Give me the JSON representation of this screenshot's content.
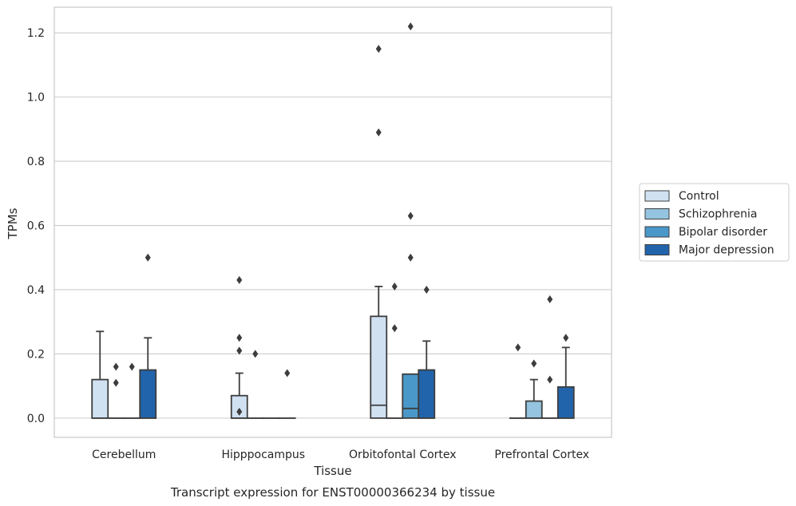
{
  "chart_data": {
    "type": "box",
    "xlabel": "Tissue",
    "ylabel": "TPMs",
    "caption": "Transcript expression for ENST00000366234 by tissue",
    "ylim": [
      -0.06,
      1.28
    ],
    "yticks": [
      0.0,
      0.2,
      0.4,
      0.6,
      0.8,
      1.0,
      1.2
    ],
    "ytick_labels": [
      "0.0",
      "0.2",
      "0.4",
      "0.6",
      "0.8",
      "1.0",
      "1.2"
    ],
    "grid": "horizontal",
    "legend_position": "right",
    "categories": [
      "Cerebellum",
      "Hipppocampus",
      "Orbitofontal Cortex",
      "Prefrontal Cortex"
    ],
    "series": [
      {
        "name": "Control",
        "color": "#d0e1f2",
        "boxes": [
          {
            "q1": 0.0,
            "median": 0.0,
            "q3": 0.12,
            "whisker_low": 0.0,
            "whisker_high": 0.27,
            "outliers": []
          },
          {
            "q1": 0.0,
            "median": 0.0,
            "q3": 0.07,
            "whisker_low": 0.0,
            "whisker_high": 0.14,
            "outliers": [
              0.43,
              0.25,
              0.21,
              0.02
            ]
          },
          {
            "q1": 0.0,
            "median": 0.04,
            "q3": 0.317,
            "whisker_low": 0.0,
            "whisker_high": 0.41,
            "outliers": [
              1.15,
              0.89
            ]
          },
          {
            "q1": 0.0,
            "median": 0.0,
            "q3": 0.0,
            "whisker_low": 0.0,
            "whisker_high": 0.0,
            "outliers": [
              0.22
            ]
          }
        ]
      },
      {
        "name": "Schizophrenia",
        "color": "#94c4df",
        "boxes": [
          {
            "q1": 0.0,
            "median": 0.0,
            "q3": 0.0,
            "whisker_low": 0.0,
            "whisker_high": 0.0,
            "outliers": [
              0.16,
              0.11
            ]
          },
          {
            "q1": 0.0,
            "median": 0.0,
            "q3": 0.0,
            "whisker_low": 0.0,
            "whisker_high": 0.0,
            "outliers": [
              0.2
            ]
          },
          {
            "q1": 0.0,
            "median": 0.0,
            "q3": 0.0,
            "whisker_low": 0.0,
            "whisker_high": 0.0,
            "outliers": [
              0.41,
              0.28
            ]
          },
          {
            "q1": 0.0,
            "median": 0.0,
            "q3": 0.053,
            "whisker_low": 0.0,
            "whisker_high": 0.12,
            "outliers": [
              0.17
            ]
          }
        ]
      },
      {
        "name": "Bipolar disorder",
        "color": "#4a98c9",
        "boxes": [
          {
            "q1": 0.0,
            "median": 0.0,
            "q3": 0.0,
            "whisker_low": 0.0,
            "whisker_high": 0.0,
            "outliers": [
              0.16
            ]
          },
          {
            "q1": 0.0,
            "median": 0.0,
            "q3": 0.0,
            "whisker_low": 0.0,
            "whisker_high": 0.0,
            "outliers": []
          },
          {
            "q1": 0.0,
            "median": 0.03,
            "q3": 0.137,
            "whisker_low": 0.0,
            "whisker_high": 0.137,
            "outliers": [
              1.22,
              0.63,
              0.5
            ]
          },
          {
            "q1": 0.0,
            "median": 0.0,
            "q3": 0.0,
            "whisker_low": 0.0,
            "whisker_high": 0.0,
            "outliers": [
              0.37,
              0.12
            ]
          }
        ]
      },
      {
        "name": "Major depression",
        "color": "#2164ab",
        "boxes": [
          {
            "q1": 0.0,
            "median": 0.0,
            "q3": 0.15,
            "whisker_low": 0.0,
            "whisker_high": 0.25,
            "outliers": [
              0.5
            ]
          },
          {
            "q1": 0.0,
            "median": 0.0,
            "q3": 0.0,
            "whisker_low": 0.0,
            "whisker_high": 0.0,
            "outliers": [
              0.14
            ]
          },
          {
            "q1": 0.0,
            "median": 0.0,
            "q3": 0.15,
            "whisker_low": 0.0,
            "whisker_high": 0.24,
            "outliers": [
              0.4
            ]
          },
          {
            "q1": 0.0,
            "median": 0.0,
            "q3": 0.097,
            "whisker_low": 0.0,
            "whisker_high": 0.22,
            "outliers": [
              0.25
            ]
          }
        ]
      }
    ]
  }
}
